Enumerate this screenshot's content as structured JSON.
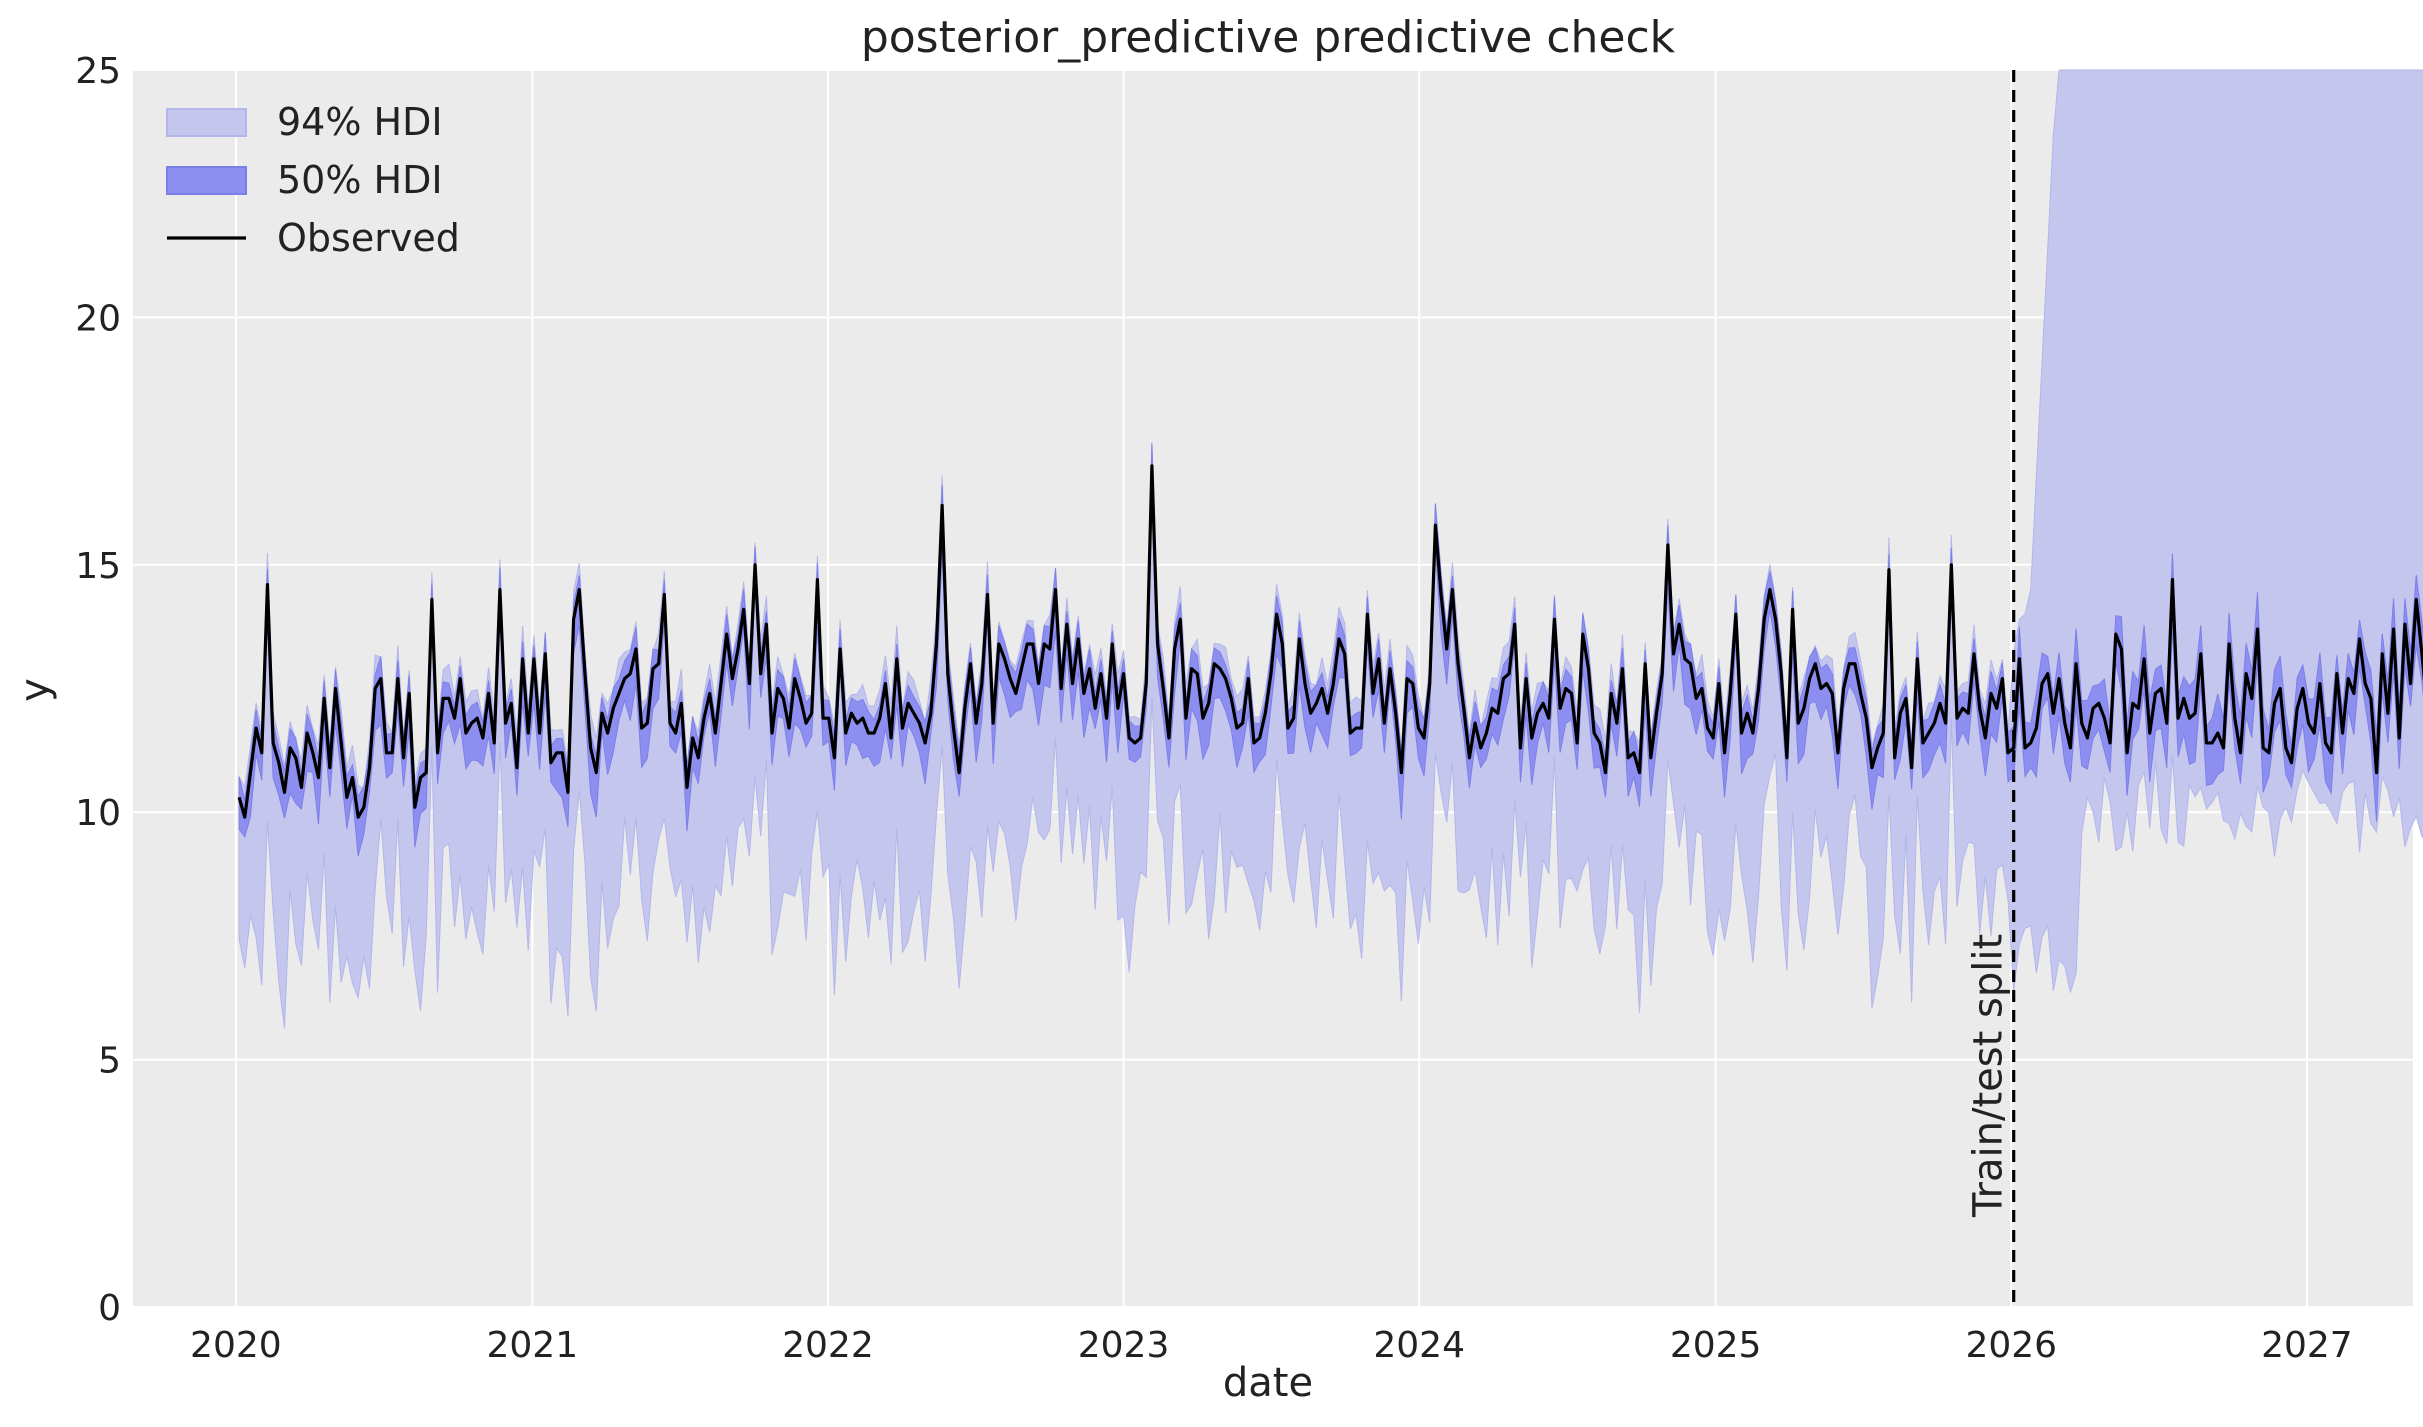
{
  "chart_data": {
    "type": "line",
    "title": "posterior_predictive predictive check",
    "xlabel": "date",
    "ylabel": "y",
    "xlim": [
      "2019-08-27",
      "2027-05-12"
    ],
    "ylim": [
      0,
      25
    ],
    "x_ticks": [
      "2020",
      "2021",
      "2022",
      "2023",
      "2024",
      "2025",
      "2026",
      "2027"
    ],
    "y_ticks": [
      0,
      5,
      10,
      15,
      20,
      25
    ],
    "grid": true,
    "legend_position": "upper-left",
    "colors": {
      "background": "#ebebeb",
      "hdi94": "#c4c6ee",
      "hdi50": "#8d8ff0",
      "observed": "#000000",
      "grid": "#ffffff"
    },
    "legend": [
      {
        "label": "94% HDI",
        "kind": "band94"
      },
      {
        "label": "50% HDI",
        "kind": "band50"
      },
      {
        "label": "Observed",
        "kind": "line"
      }
    ],
    "annotation": {
      "label": "Train/test split",
      "x": "2026-01-04"
    },
    "series": [
      {
        "name": "Observed",
        "frequency": "weekly",
        "start": "2020-01-05",
        "end": "2026-12-27",
        "values": [
          10.3,
          9.9,
          10.8,
          11.7,
          11.2,
          14.6,
          11.4,
          11.0,
          10.4,
          11.3,
          11.1,
          10.5,
          11.6,
          11.2,
          10.7,
          12.3,
          10.9,
          12.5,
          11.4,
          10.3,
          10.7,
          9.9,
          10.1,
          10.9,
          12.5,
          12.7,
          11.2,
          11.2,
          12.7,
          11.1,
          12.4,
          10.1,
          10.7,
          10.8,
          14.3,
          11.2,
          12.3,
          12.3,
          11.9,
          12.7,
          11.6,
          11.8,
          11.9,
          11.5,
          12.4,
          11.4,
          14.5,
          11.8,
          12.2,
          10.9,
          13.1,
          11.6,
          13.1,
          11.6,
          13.2,
          11.0,
          11.2,
          11.2,
          10.4,
          13.9,
          14.5,
          12.8,
          11.3,
          10.8,
          12.0,
          11.6,
          12.1,
          12.4,
          12.7,
          12.8,
          13.3,
          11.7,
          11.8,
          12.9,
          13.0,
          14.4,
          11.8,
          11.6,
          12.2,
          10.5,
          11.5,
          11.1,
          11.9,
          12.4,
          11.6,
          12.6,
          13.6,
          12.7,
          13.3,
          14.1,
          12.6,
          15.0,
          12.8,
          13.8,
          11.6,
          12.5,
          12.3,
          11.7,
          12.7,
          12.3,
          11.8,
          12.0,
          14.7,
          11.9,
          11.9,
          11.1,
          13.3,
          11.6,
          12.0,
          11.8,
          11.9,
          11.6,
          11.6,
          11.9,
          12.6,
          11.5,
          13.1,
          11.7,
          12.2,
          12.0,
          11.8,
          11.4,
          12.0,
          13.4,
          16.2,
          12.8,
          11.7,
          10.8,
          12.1,
          13.0,
          11.8,
          12.6,
          14.4,
          11.8,
          13.4,
          13.1,
          12.7,
          12.4,
          12.9,
          13.4,
          13.4,
          12.6,
          13.4,
          13.3,
          14.5,
          12.5,
          13.8,
          12.6,
          13.5,
          12.4,
          12.9,
          12.1,
          12.8,
          11.9,
          13.4,
          12.1,
          12.8,
          11.5,
          11.4,
          11.5,
          12.6,
          17.0,
          13.4,
          12.5,
          11.5,
          13.3,
          13.9,
          11.9,
          12.9,
          12.8,
          11.9,
          12.2,
          13.0,
          12.9,
          12.7,
          12.3,
          11.7,
          11.8,
          12.7,
          11.4,
          11.5,
          12.0,
          12.8,
          14.0,
          13.4,
          11.7,
          11.9,
          13.5,
          12.6,
          12.0,
          12.2,
          12.5,
          12.0,
          12.6,
          13.5,
          13.2,
          11.6,
          11.7,
          11.7,
          14.0,
          12.4,
          13.1,
          11.8,
          12.9,
          12.0,
          10.8,
          12.7,
          12.6,
          11.7,
          11.5,
          12.6,
          15.8,
          14.4,
          13.3,
          14.5,
          13.0,
          12.1,
          11.1,
          11.8,
          11.3,
          11.6,
          12.1,
          12.0,
          12.7,
          12.8,
          13.8,
          11.3,
          12.7,
          11.5,
          12.0,
          12.2,
          11.9,
          13.9,
          12.1,
          12.5,
          12.4,
          11.4,
          13.6,
          12.9,
          11.6,
          11.4,
          10.8,
          12.4,
          11.8,
          12.9,
          11.1,
          11.2,
          10.8,
          13.0,
          11.1,
          12.0,
          12.8,
          15.4,
          13.2,
          13.8,
          13.1,
          13.0,
          12.3,
          12.5,
          11.7,
          11.5,
          12.6,
          11.2,
          12.4,
          14.0,
          11.6,
          12.0,
          11.6,
          12.5,
          13.9,
          14.5,
          13.9,
          12.8,
          11.1,
          14.1,
          11.8,
          12.1,
          12.7,
          13.0,
          12.5,
          12.6,
          12.4,
          11.2,
          12.5,
          13.0,
          13.0,
          12.4,
          11.9,
          10.9,
          11.3,
          11.6,
          14.9,
          11.1,
          12.0,
          12.3,
          10.9,
          13.1,
          11.4,
          11.6,
          11.8,
          12.2,
          11.8,
          15.0,
          11.9,
          12.1,
          12.0,
          13.2,
          12.1,
          11.5,
          12.4,
          12.1,
          12.7,
          11.2,
          11.3,
          13.1,
          11.3,
          11.4,
          11.7,
          12.6,
          12.8,
          12.0,
          12.7,
          11.8,
          11.3,
          13.0,
          11.8,
          11.5,
          12.1,
          12.2,
          11.9,
          11.4,
          13.6,
          13.3,
          11.2,
          12.2,
          12.1,
          13.1,
          11.6,
          12.4,
          12.5,
          11.8,
          14.7,
          11.9,
          12.3,
          11.9,
          12.0,
          13.2,
          11.4,
          11.4,
          11.6,
          11.3,
          13.4,
          11.9,
          11.2,
          12.8,
          12.3,
          13.7,
          11.3,
          11.2,
          12.2,
          12.5,
          11.3,
          11.0,
          12.1,
          12.5,
          11.8,
          11.6,
          12.6,
          11.4,
          11.2,
          12.8,
          11.6,
          12.7,
          12.4,
          13.5,
          12.6,
          12.3,
          10.8,
          13.2,
          12.0,
          13.7,
          11.5,
          13.8,
          12.6,
          14.3,
          13.2,
          12.0,
          11.4,
          12.8,
          12.2,
          12.7
        ]
      }
    ]
  }
}
